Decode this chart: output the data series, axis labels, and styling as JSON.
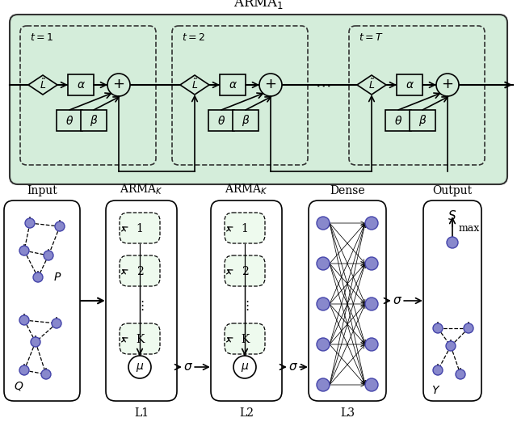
{
  "fig_width": 6.4,
  "fig_height": 5.22,
  "dpi": 100,
  "bg_color": "#ffffff",
  "green_fill": "#d4edda",
  "node_color": "#8888cc",
  "arma1_title": "ARMA$_1$",
  "bottom_labels_col": [
    "Input",
    "ARMA$_K$",
    "ARMA$_K$",
    "Dense",
    "Output"
  ],
  "bottom_sublabels": [
    "",
    "L1",
    "L2",
    "L3",
    ""
  ]
}
